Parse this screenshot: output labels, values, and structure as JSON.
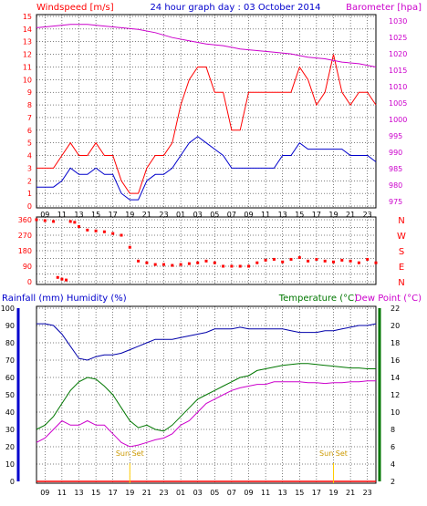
{
  "header": {
    "left_label": "Windspeed [m/s]",
    "title": "24 hour graph day : 03 October 2014",
    "right_label": "Barometer [hpa]"
  },
  "panel2": {
    "direction_labels": [
      "N",
      "W",
      "S",
      "E",
      "N"
    ]
  },
  "panel3": {
    "left_label": "Rainfall (mm)  Humidity (%)",
    "right_label": "Temperature (°C)",
    "right_label2": "Dew Point (°C)",
    "annotations": [
      {
        "text": "Sun Set",
        "x_hour": 19.0
      },
      {
        "text": "Sun Set",
        "x_hour": 43.0
      }
    ]
  },
  "x_axis": {
    "tick_labels": [
      "09",
      "11",
      "13",
      "15",
      "17",
      "19",
      "21",
      "23",
      "01",
      "03",
      "05",
      "07",
      "09",
      "11",
      "13",
      "15",
      "17",
      "19",
      "21",
      "23"
    ]
  },
  "colors": {
    "grid": "#000000",
    "wind_gust": "#ff0000",
    "wind_avg": "#0000cc",
    "barometer": "#cc00cc",
    "direction": "#ff0000",
    "humidity": "#0000aa",
    "temperature": "#007700",
    "dewpoint": "#cc00cc",
    "rain": "#ff0000",
    "sunset": "#ffcc00",
    "axis_blue": "#0000cc",
    "axis_green": "#007700"
  },
  "chart_data": [
    {
      "type": "line",
      "title": "24 hour graph day : 03 October 2014",
      "x_range_hours": [
        8,
        48
      ],
      "y_left": {
        "label": "Windspeed [m/s]",
        "range": [
          0,
          15
        ],
        "ticks": [
          0,
          1,
          2,
          3,
          4,
          5,
          6,
          7,
          8,
          9,
          10,
          11,
          12,
          13,
          14,
          15
        ]
      },
      "y_right": {
        "label": "Barometer [hpa]",
        "range": [
          973,
          1032
        ],
        "ticks": [
          975,
          980,
          985,
          990,
          995,
          1000,
          1005,
          1010,
          1015,
          1020,
          1025,
          1030
        ]
      },
      "series": [
        {
          "name": "Windspeed [m/s]",
          "axis": "left",
          "x": [
            8,
            10,
            11,
            12,
            13,
            14,
            15,
            16,
            17,
            18,
            19,
            20,
            21,
            22,
            23,
            24,
            25,
            26,
            27,
            28,
            29,
            30,
            31,
            32,
            33,
            34,
            35,
            36,
            37,
            38,
            39,
            40,
            41,
            42,
            43,
            44,
            45,
            46,
            47,
            48
          ],
          "values": [
            3,
            3,
            4,
            5,
            4,
            4,
            5,
            4,
            4,
            2,
            1,
            1,
            3,
            4,
            4,
            5,
            8,
            10,
            11,
            11,
            9,
            9,
            6,
            6,
            9,
            9,
            9,
            9,
            9,
            9,
            11,
            10,
            8,
            9,
            12,
            9,
            8,
            9,
            9,
            8
          ]
        },
        {
          "axis": "left",
          "x": [
            8,
            10,
            11,
            12,
            13,
            14,
            15,
            16,
            17,
            18,
            19,
            20,
            21,
            22,
            23,
            24,
            25,
            26,
            27,
            28,
            29,
            30,
            31,
            32,
            33,
            34,
            35,
            36,
            37,
            38,
            39,
            40,
            41,
            42,
            43,
            44,
            45,
            46,
            47,
            48
          ],
          "values": [
            1.5,
            1.5,
            2,
            3,
            2.5,
            2.5,
            3,
            2.5,
            2.5,
            1,
            0.5,
            0.5,
            2,
            2.5,
            2.5,
            3,
            4,
            5,
            5.5,
            5,
            4.5,
            4,
            3,
            3,
            3,
            3,
            3,
            3,
            4,
            4,
            5,
            4.5,
            4.5,
            4.5,
            4.5,
            4.5,
            4,
            4,
            4,
            3.5
          ]
        },
        {
          "name": "Barometer [hpa]",
          "axis": "right",
          "x": [
            8,
            10,
            12,
            14,
            16,
            18,
            20,
            22,
            24,
            26,
            28,
            30,
            32,
            34,
            36,
            38,
            40,
            42,
            44,
            46,
            48
          ],
          "values": [
            1028,
            1028.5,
            1029,
            1029,
            1028.5,
            1028,
            1027.5,
            1026.5,
            1025,
            1024,
            1023,
            1022.5,
            1021.5,
            1021,
            1020.5,
            1020,
            1019,
            1018.5,
            1017.5,
            1017,
            1016
          ]
        }
      ]
    },
    {
      "type": "scatter",
      "x_range_hours": [
        8,
        48
      ],
      "y_left": {
        "range": [
          0,
          360
        ],
        "ticks": [
          0,
          45,
          90,
          135,
          180,
          225,
          270,
          315,
          360
        ]
      },
      "series": [
        {
          "x": [
            8,
            9,
            10,
            10.5,
            11,
            11.5,
            12,
            12.5,
            13,
            14,
            15,
            16,
            17,
            18,
            19,
            20,
            21,
            22,
            23,
            24,
            25,
            26,
            27,
            28,
            29,
            30,
            31,
            32,
            33,
            34,
            35,
            36,
            37,
            38,
            39,
            40,
            41,
            42,
            43,
            44,
            45,
            46,
            47,
            48
          ],
          "values": [
            360,
            355,
            350,
            25,
            15,
            10,
            350,
            345,
            320,
            300,
            295,
            290,
            280,
            270,
            200,
            120,
            110,
            100,
            100,
            95,
            100,
            105,
            110,
            120,
            110,
            90,
            90,
            90,
            90,
            110,
            125,
            130,
            115,
            130,
            140,
            120,
            130,
            120,
            115,
            125,
            120,
            110,
            130,
            110
          ]
        }
      ]
    },
    {
      "type": "line",
      "x_range_hours": [
        8,
        48
      ],
      "y_left": {
        "label": "Rainfall (mm)  Humidity (%)",
        "range": [
          0,
          100
        ],
        "ticks": [
          0,
          10,
          20,
          30,
          40,
          50,
          60,
          70,
          80,
          90,
          100
        ]
      },
      "y_right": {
        "label": "Temperature (°C)",
        "range": [
          2,
          22
        ],
        "ticks": [
          2,
          4,
          6,
          8,
          10,
          12,
          14,
          16,
          18,
          20,
          22
        ]
      },
      "series": [
        {
          "name": "Humidity (%)",
          "axis": "left",
          "x": [
            8,
            9,
            10,
            11,
            12,
            13,
            14,
            15,
            16,
            17,
            18,
            19,
            20,
            21,
            22,
            23,
            24,
            25,
            26,
            27,
            28,
            29,
            30,
            31,
            32,
            33,
            34,
            35,
            36,
            37,
            38,
            39,
            40,
            41,
            42,
            43,
            44,
            45,
            46,
            47,
            48
          ],
          "values": [
            91,
            91,
            90,
            85,
            78,
            71,
            70,
            72,
            73,
            73,
            74,
            76,
            78,
            80,
            82,
            82,
            82,
            83,
            84,
            85,
            86,
            88,
            88,
            88,
            89,
            88,
            88,
            88,
            88,
            88,
            87,
            86,
            86,
            86,
            87,
            87,
            88,
            89,
            90,
            90,
            91
          ]
        },
        {
          "name": "Temperature (°C)",
          "axis": "right",
          "x": [
            8,
            9,
            10,
            11,
            12,
            13,
            14,
            15,
            16,
            17,
            18,
            19,
            20,
            21,
            22,
            23,
            24,
            25,
            26,
            27,
            28,
            29,
            30,
            31,
            32,
            33,
            34,
            35,
            36,
            37,
            38,
            39,
            40,
            41,
            42,
            43,
            44,
            45,
            46,
            47,
            48
          ],
          "values": [
            8,
            8.5,
            9.5,
            11,
            12.5,
            13.5,
            14,
            13.8,
            13,
            12,
            10.5,
            9,
            8.2,
            8.5,
            8,
            7.8,
            8.5,
            9.5,
            10.5,
            11.5,
            12,
            12.5,
            13,
            13.5,
            14,
            14.2,
            14.8,
            15,
            15.2,
            15.4,
            15.5,
            15.6,
            15.6,
            15.5,
            15.4,
            15.3,
            15.2,
            15.1,
            15.1,
            15,
            15
          ]
        },
        {
          "name": "Dew Point (°C)",
          "axis": "right",
          "x": [
            8,
            9,
            10,
            11,
            12,
            13,
            14,
            15,
            16,
            17,
            18,
            19,
            20,
            21,
            22,
            23,
            24,
            25,
            26,
            27,
            28,
            29,
            30,
            31,
            32,
            33,
            34,
            35,
            36,
            37,
            38,
            39,
            40,
            41,
            42,
            43,
            44,
            45,
            46,
            47,
            48
          ],
          "values": [
            6.5,
            7,
            8,
            9,
            8.5,
            8.5,
            9,
            8.5,
            8.5,
            7.5,
            6.5,
            6,
            6.2,
            6.5,
            6.8,
            7,
            7.5,
            8.5,
            9,
            10,
            11,
            11.5,
            12,
            12.5,
            12.8,
            13,
            13.2,
            13.2,
            13.5,
            13.5,
            13.5,
            13.5,
            13.4,
            13.4,
            13.3,
            13.4,
            13.4,
            13.5,
            13.5,
            13.6,
            13.6
          ]
        },
        {
          "name": "Rainfall (mm)",
          "axis": "left",
          "x": [
            8,
            48
          ],
          "values": [
            0,
            0
          ]
        }
      ]
    }
  ]
}
